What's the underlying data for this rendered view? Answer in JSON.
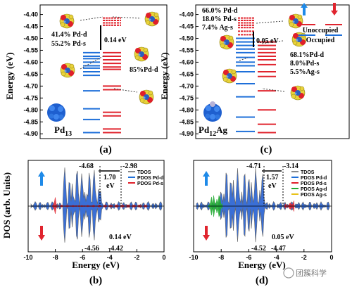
{
  "colors": {
    "occupied": "#1e6fd9",
    "unoccupied": "#e0242e",
    "dos_fill": "#3a6fd6",
    "pd_s": "#e01f2a",
    "tdos": "#8a8a8a",
    "ag_d": "#22aa33",
    "ag_s": "#e8c21a"
  },
  "panel_a": {
    "label": "(a)",
    "ylabel": "Energy (eV)",
    "name": "Pd",
    "name_sub": "13",
    "gap": "0.14 eV",
    "homo_comp": [
      "41.4% Pd-d",
      "55.2% Pd-s"
    ],
    "lumo_comp": "85%Pd-d"
  },
  "panel_c": {
    "label": "(c)",
    "name": "Pd",
    "name_sub": "12",
    "name_tail": "Ag",
    "gap": "0.05 eV",
    "lumo_comp": [
      "66.0% Pd-d",
      "18.0% Pd-s",
      "7.4% Ag-s"
    ],
    "homo_comp": [
      "68.1%Pd-d",
      "8.0%Pd-s",
      "5.5%Ag-s"
    ],
    "legend": {
      "unocc": "Unoccupied",
      "occ": "Occupied"
    }
  },
  "panel_b": {
    "label": "(b)",
    "ylabel": "DOS (arb. Units)",
    "xlabel": "Energy (eV)",
    "peaks": [
      "-4.68",
      "-2.98",
      "-4.56",
      "-4.42"
    ],
    "gap_big": "1.70",
    "gap_big_unit": "eV",
    "gap_small": "0.14 eV",
    "legend": [
      "TDOS",
      "PDOS Pd-d",
      "PDOS Pd-s"
    ]
  },
  "panel_d": {
    "label": "(d)",
    "xlabel": "Energy (eV)",
    "peaks": [
      "-4.71",
      "-3.14",
      "-4.52",
      "-4.47"
    ],
    "gap_big": "1.57",
    "gap_big_unit": "eV",
    "gap_small": "0.05 eV",
    "legend": [
      "TDOS",
      "PDOS Pd-d",
      "PDOS Pd-s",
      "PDOS Ag-d",
      "PDOS Ag-s"
    ]
  },
  "watermark": "团簇科学",
  "chart_data": [
    {
      "type": "energy-level",
      "panel": "a",
      "ylabel": "Energy (eV)",
      "ylim": [
        -4.92,
        -4.36
      ],
      "yticks": [
        "-4.40",
        "-4.45",
        "-4.50",
        "-4.55",
        "-4.60",
        "-4.65",
        "-4.70",
        "-4.75",
        "-4.80",
        "-4.85",
        "-4.90"
      ],
      "occupied_left": [
        -4.56,
        -4.575,
        -4.585,
        -4.6,
        -4.615,
        -4.625,
        -4.64,
        -4.655,
        -4.72,
        -4.795,
        -4.84,
        -4.895
      ],
      "occupied_right": [
        -4.56,
        -4.575,
        -4.59,
        -4.605,
        -4.62,
        -4.63,
        -4.7,
        -4.715,
        -4.81,
        -4.825,
        -4.88,
        -4.895
      ],
      "unoccupied": [
        -4.415,
        -4.425,
        -4.435,
        -4.445
      ]
    },
    {
      "type": "energy-level",
      "panel": "c",
      "ylim": [
        -4.92,
        -4.36
      ],
      "yticks": [
        "-4.40",
        "-4.45",
        "-4.50",
        "-4.55",
        "-4.60",
        "-4.65",
        "-4.70",
        "-4.75",
        "-4.80",
        "-4.85",
        "-4.90"
      ],
      "occupied_left": [
        -4.5,
        -4.515,
        -4.53,
        -4.545,
        -4.56,
        -4.58,
        -4.6,
        -4.615,
        -4.64,
        -4.69,
        -4.745,
        -4.83,
        -4.89
      ],
      "occupied_right": [
        -4.515,
        -4.53,
        -4.545,
        -4.56,
        -4.575,
        -4.59,
        -4.61,
        -4.64,
        -4.66,
        -4.72,
        -4.8,
        -4.86,
        -4.895
      ],
      "unoccupied": [
        -4.415,
        -4.425,
        -4.435,
        -4.445,
        -4.455,
        -4.47,
        -4.485
      ]
    },
    {
      "type": "area",
      "panel": "b",
      "xlabel": "Energy (eV)",
      "ylabel": "DOS (arb. Units)",
      "xlim": [
        -10,
        0
      ],
      "xticks": [
        "-10",
        "-8",
        "-6",
        "-4",
        "-2",
        "0"
      ],
      "series": [
        "TDOS",
        "PDOS Pd-d",
        "PDOS Pd-s"
      ]
    },
    {
      "type": "area",
      "panel": "d",
      "xlabel": "Energy (eV)",
      "xlim": [
        -10,
        0
      ],
      "xticks": [
        "-10",
        "-8",
        "-6",
        "-4",
        "-2",
        "0"
      ],
      "series": [
        "TDOS",
        "PDOS Pd-d",
        "PDOS Pd-s",
        "PDOS Ag-d",
        "PDOS Ag-s"
      ]
    }
  ]
}
